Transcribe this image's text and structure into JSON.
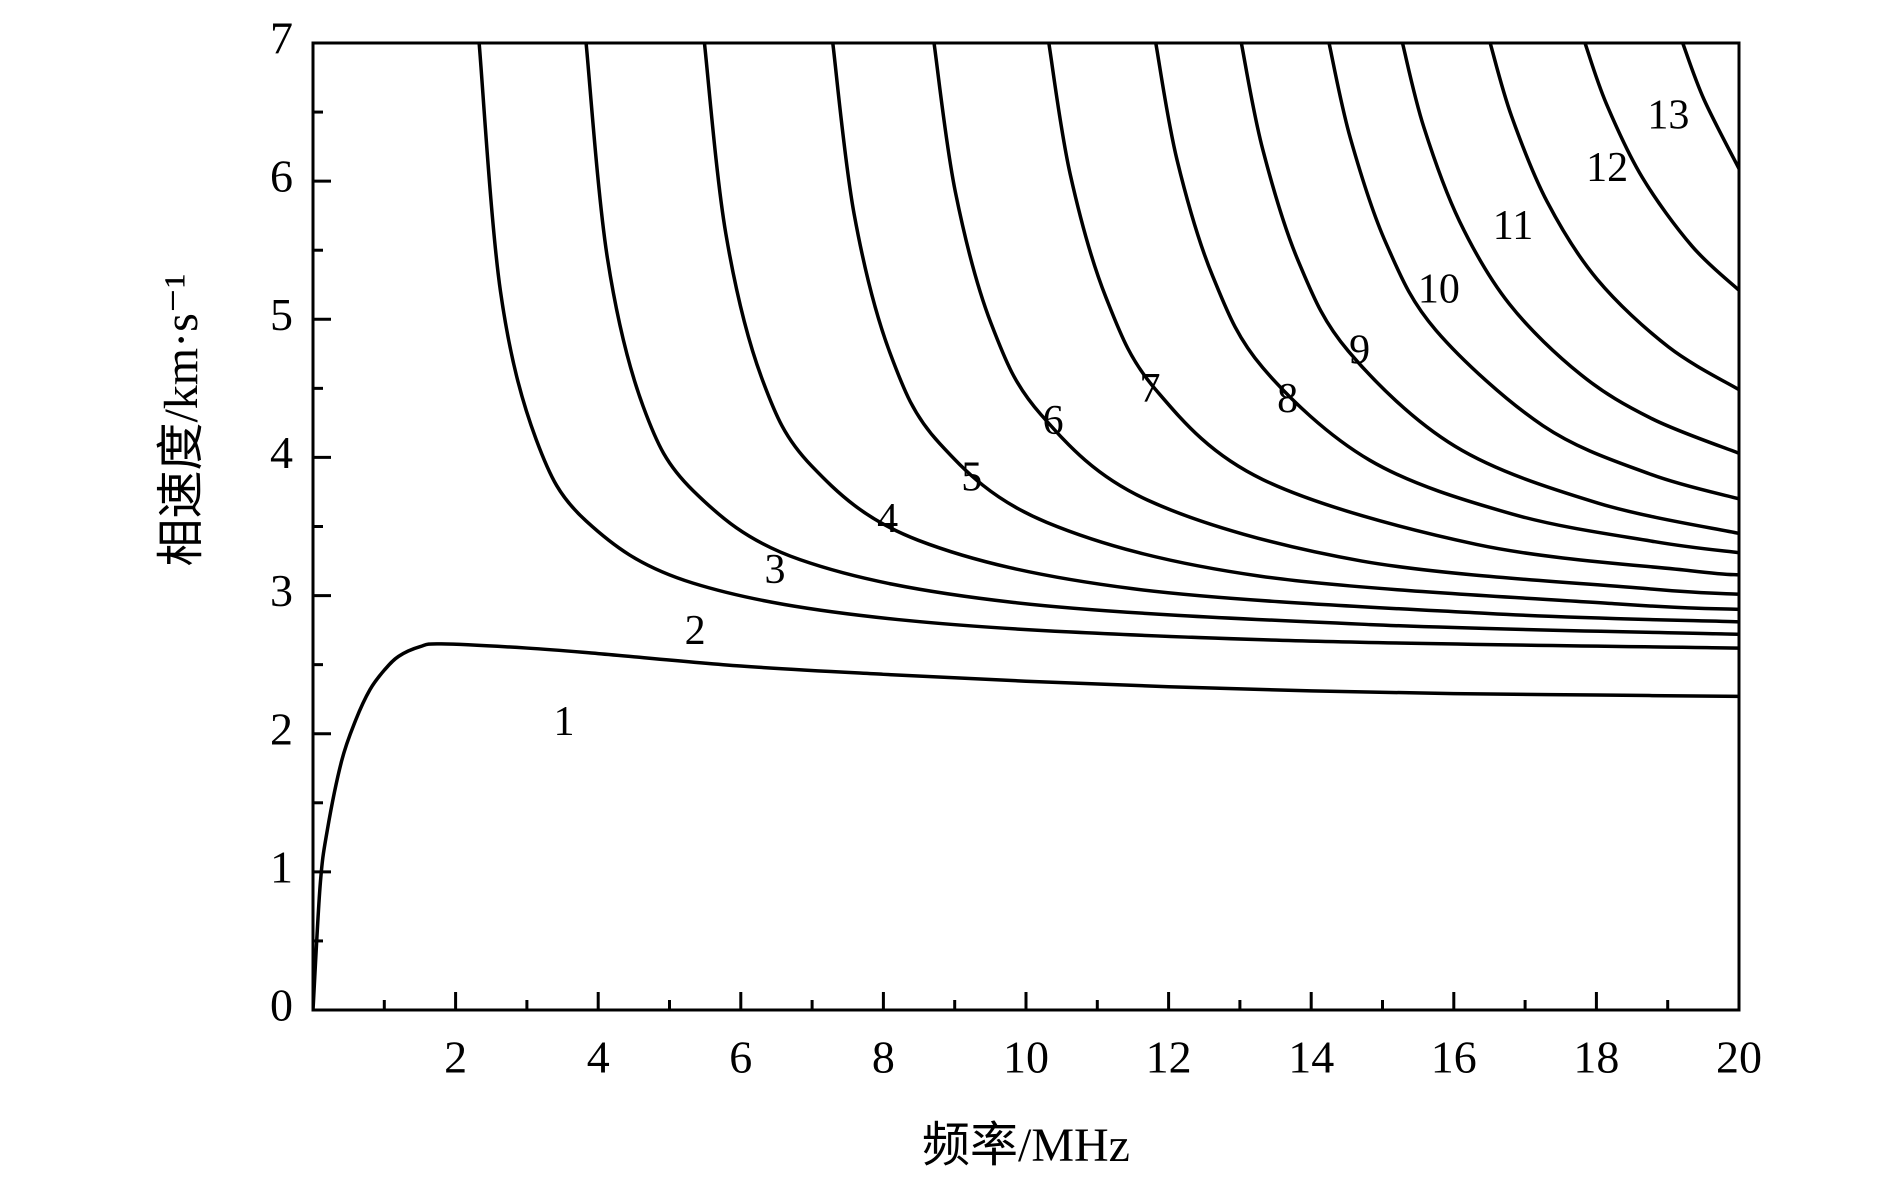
{
  "chart_data": {
    "type": "line",
    "x_label": "频率/MHz",
    "y_label": "相速度/km·s⁻¹",
    "xlim": [
      0,
      20
    ],
    "ylim": [
      0,
      7
    ],
    "xticks": [
      2,
      4,
      6,
      8,
      10,
      12,
      14,
      16,
      18,
      20
    ],
    "yticks": [
      0,
      1,
      2,
      3,
      4,
      5,
      6,
      7
    ],
    "xminor_ticks": [
      1,
      3,
      5,
      7,
      9,
      11,
      13,
      15,
      17,
      19
    ],
    "yminor_ticks": [
      0.5,
      1.5,
      2.5,
      3.5,
      4.5,
      5.5,
      6.5
    ],
    "grid": false,
    "color": "#000000",
    "series": [
      {
        "x": [
          0,
          0.1,
          0.2,
          0.4,
          0.6,
          0.8,
          1.0,
          1.2,
          1.5,
          1.8,
          3,
          4,
          6,
          8,
          10,
          12,
          14,
          16,
          18,
          20
        ],
        "values": [
          0,
          0.9,
          1.3,
          1.8,
          2.1,
          2.32,
          2.46,
          2.56,
          2.63,
          2.65,
          2.62,
          2.58,
          2.49,
          2.43,
          2.38,
          2.34,
          2.31,
          2.29,
          2.28,
          2.27
        ]
      },
      {
        "x": [
          2.33,
          2.63,
          3.13,
          3.83,
          5.33,
          8.33,
          13.33,
          20
        ],
        "values": [
          7,
          5.2,
          4.13,
          3.54,
          3.09,
          2.82,
          2.68,
          2.62
        ]
      },
      {
        "x": [
          3.83,
          4.13,
          4.63,
          5.33,
          6.83,
          9.83,
          14.83,
          20
        ],
        "values": [
          7,
          5.44,
          4.37,
          3.76,
          3.26,
          2.95,
          2.79,
          2.72
        ]
      },
      {
        "x": [
          5.49,
          5.79,
          6.29,
          6.99,
          8.49,
          11.49,
          16.49,
          20
        ],
        "values": [
          7,
          5.62,
          4.58,
          3.94,
          3.4,
          3.05,
          2.87,
          2.81
        ]
      },
      {
        "x": [
          7.29,
          7.59,
          8.09,
          8.79,
          10.29,
          13.29,
          18.29,
          20
        ],
        "values": [
          7,
          5.76,
          4.76,
          4.1,
          3.53,
          3.14,
          2.94,
          2.9
        ]
      },
      {
        "x": [
          8.71,
          9.01,
          9.51,
          10.21,
          11.71,
          14.71,
          18.71,
          20
        ],
        "values": [
          7,
          5.92,
          4.97,
          4.31,
          3.69,
          3.25,
          3.05,
          3.01
        ]
      },
      {
        "x": [
          10.32,
          10.62,
          11.12,
          11.82,
          13.32,
          16.32,
          19.32,
          20
        ],
        "values": [
          7,
          6.05,
          5.16,
          4.49,
          3.84,
          3.37,
          3.18,
          3.15
        ]
      },
      {
        "x": [
          11.82,
          12.12,
          12.62,
          13.32,
          14.82,
          16.82,
          18.82,
          20
        ],
        "values": [
          7,
          6.15,
          5.31,
          4.65,
          3.98,
          3.59,
          3.39,
          3.31
        ]
      },
      {
        "x": [
          13.02,
          13.32,
          13.82,
          14.52,
          16.02,
          18.02,
          20
        ],
        "values": [
          7,
          6.23,
          5.42,
          4.77,
          4.08,
          3.67,
          3.45
        ]
      },
      {
        "x": [
          14.25,
          14.55,
          15.05,
          15.75,
          17.25,
          18.75,
          20
        ],
        "values": [
          7,
          6.31,
          5.55,
          4.92,
          4.23,
          3.88,
          3.7
        ]
      },
      {
        "x": [
          15.28,
          15.58,
          16.08,
          16.78,
          17.78,
          18.78,
          20
        ],
        "values": [
          7,
          6.39,
          5.71,
          5.11,
          4.6,
          4.28,
          4.03
        ]
      },
      {
        "x": [
          16.51,
          16.81,
          17.31,
          18.01,
          19.01,
          20
        ],
        "values": [
          7,
          6.47,
          5.85,
          5.29,
          4.8,
          4.49
        ]
      },
      {
        "x": [
          17.84,
          18.14,
          18.64,
          19.34,
          20
        ],
        "values": [
          7,
          6.56,
          6.03,
          5.53,
          5.21
        ]
      },
      {
        "x": [
          19.21,
          19.51,
          20
        ],
        "values": [
          7,
          6.59,
          6.09
        ]
      }
    ],
    "annotations": [
      {
        "text": "1",
        "x": 3.52,
        "y": 2.06
      },
      {
        "text": "2",
        "x": 5.36,
        "y": 2.72
      },
      {
        "text": "3",
        "x": 6.48,
        "y": 3.16
      },
      {
        "text": "4",
        "x": 8.06,
        "y": 3.53
      },
      {
        "text": "5",
        "x": 9.24,
        "y": 3.83
      },
      {
        "text": "6",
        "x": 10.38,
        "y": 4.24
      },
      {
        "text": "7",
        "x": 11.74,
        "y": 4.47
      },
      {
        "text": "8",
        "x": 13.67,
        "y": 4.4
      },
      {
        "text": "9",
        "x": 14.68,
        "y": 4.75
      },
      {
        "text": "10",
        "x": 15.79,
        "y": 5.19
      },
      {
        "text": "11",
        "x": 16.83,
        "y": 5.65
      },
      {
        "text": "12",
        "x": 18.15,
        "y": 6.07
      },
      {
        "text": "13",
        "x": 19.01,
        "y": 6.45
      }
    ]
  }
}
